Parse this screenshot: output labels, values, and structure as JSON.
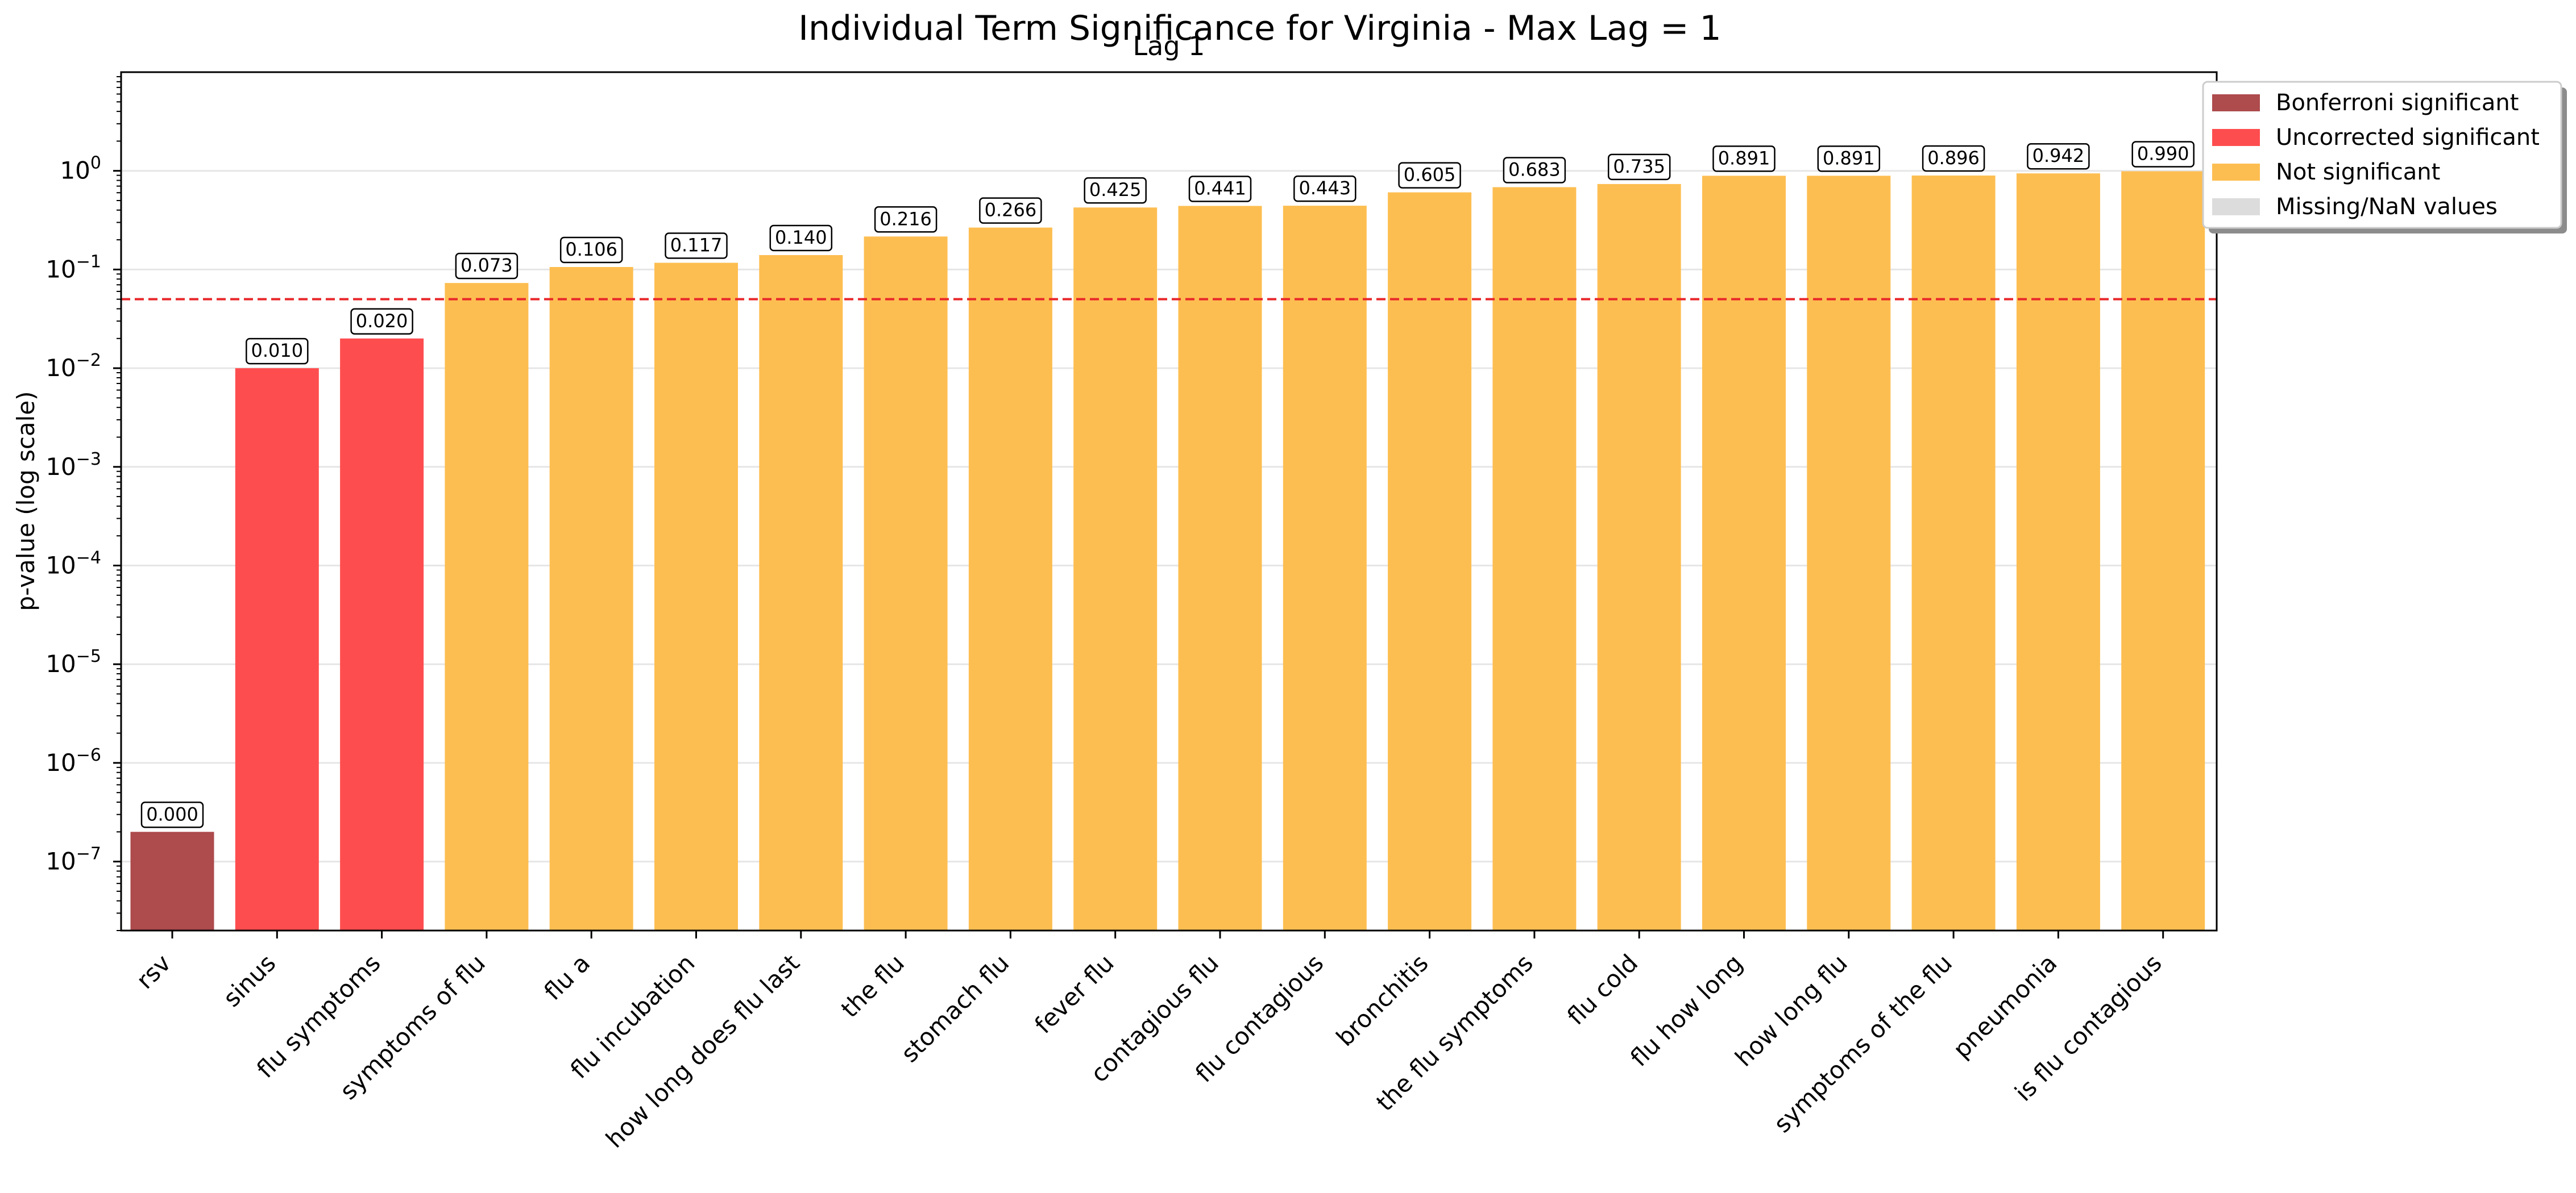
{
  "chart_data": {
    "type": "bar",
    "title": "Individual Term Significance for Virginia - Max Lag = 1",
    "subtitle": "Lag 1",
    "xlabel": "",
    "ylabel": "p-value (log scale)",
    "yscale": "log",
    "ylim": [
      2e-08,
      10
    ],
    "ytick_labels": [
      {
        "base": "10",
        "exp": "0"
      },
      {
        "base": "10",
        "exp": "−1"
      },
      {
        "base": "10",
        "exp": "−2"
      },
      {
        "base": "10",
        "exp": "−3"
      },
      {
        "base": "10",
        "exp": "−4"
      },
      {
        "base": "10",
        "exp": "−5"
      },
      {
        "base": "10",
        "exp": "−6"
      },
      {
        "base": "10",
        "exp": "−7"
      }
    ],
    "grid": "horizontal",
    "threshold": {
      "value": 0.05,
      "style": "dashed",
      "color": "#e8262a"
    },
    "categories": [
      "rsv",
      "sinus",
      "flu symptoms",
      "symptoms of flu",
      "flu a",
      "flu incubation",
      "how long does flu last",
      "the flu",
      "stomach flu",
      "fever flu",
      "contagious flu",
      "flu contagious",
      "bronchitis",
      "the flu symptoms",
      "flu cold",
      "flu how long",
      "how long flu",
      "symptoms of the flu",
      "pneumonia",
      "is flu contagious"
    ],
    "values": [
      2e-07,
      0.01,
      0.02,
      0.073,
      0.106,
      0.117,
      0.14,
      0.216,
      0.266,
      0.425,
      0.441,
      0.443,
      0.605,
      0.683,
      0.735,
      0.891,
      0.891,
      0.896,
      0.942,
      0.99
    ],
    "value_labels": [
      "0.000",
      "0.010",
      "0.020",
      "0.073",
      "0.106",
      "0.117",
      "0.140",
      "0.216",
      "0.266",
      "0.425",
      "0.441",
      "0.443",
      "0.605",
      "0.683",
      "0.735",
      "0.891",
      "0.891",
      "0.896",
      "0.942",
      "0.990"
    ],
    "bar_status": [
      "bonferroni",
      "uncorrected",
      "uncorrected",
      "not",
      "not",
      "not",
      "not",
      "not",
      "not",
      "not",
      "not",
      "not",
      "not",
      "not",
      "not",
      "not",
      "not",
      "not",
      "not",
      "not"
    ],
    "colors": {
      "bonferroni": "#ad4b4d",
      "uncorrected": "#fe4d4f",
      "not": "#fdbe51",
      "missing": "#dcdcdc"
    },
    "legend_position": "top-right",
    "legend": [
      {
        "key": "bonferroni",
        "label": "Bonferroni significant"
      },
      {
        "key": "uncorrected",
        "label": "Uncorrected significant"
      },
      {
        "key": "not",
        "label": "Not significant"
      },
      {
        "key": "missing",
        "label": "Missing/NaN values"
      }
    ]
  }
}
